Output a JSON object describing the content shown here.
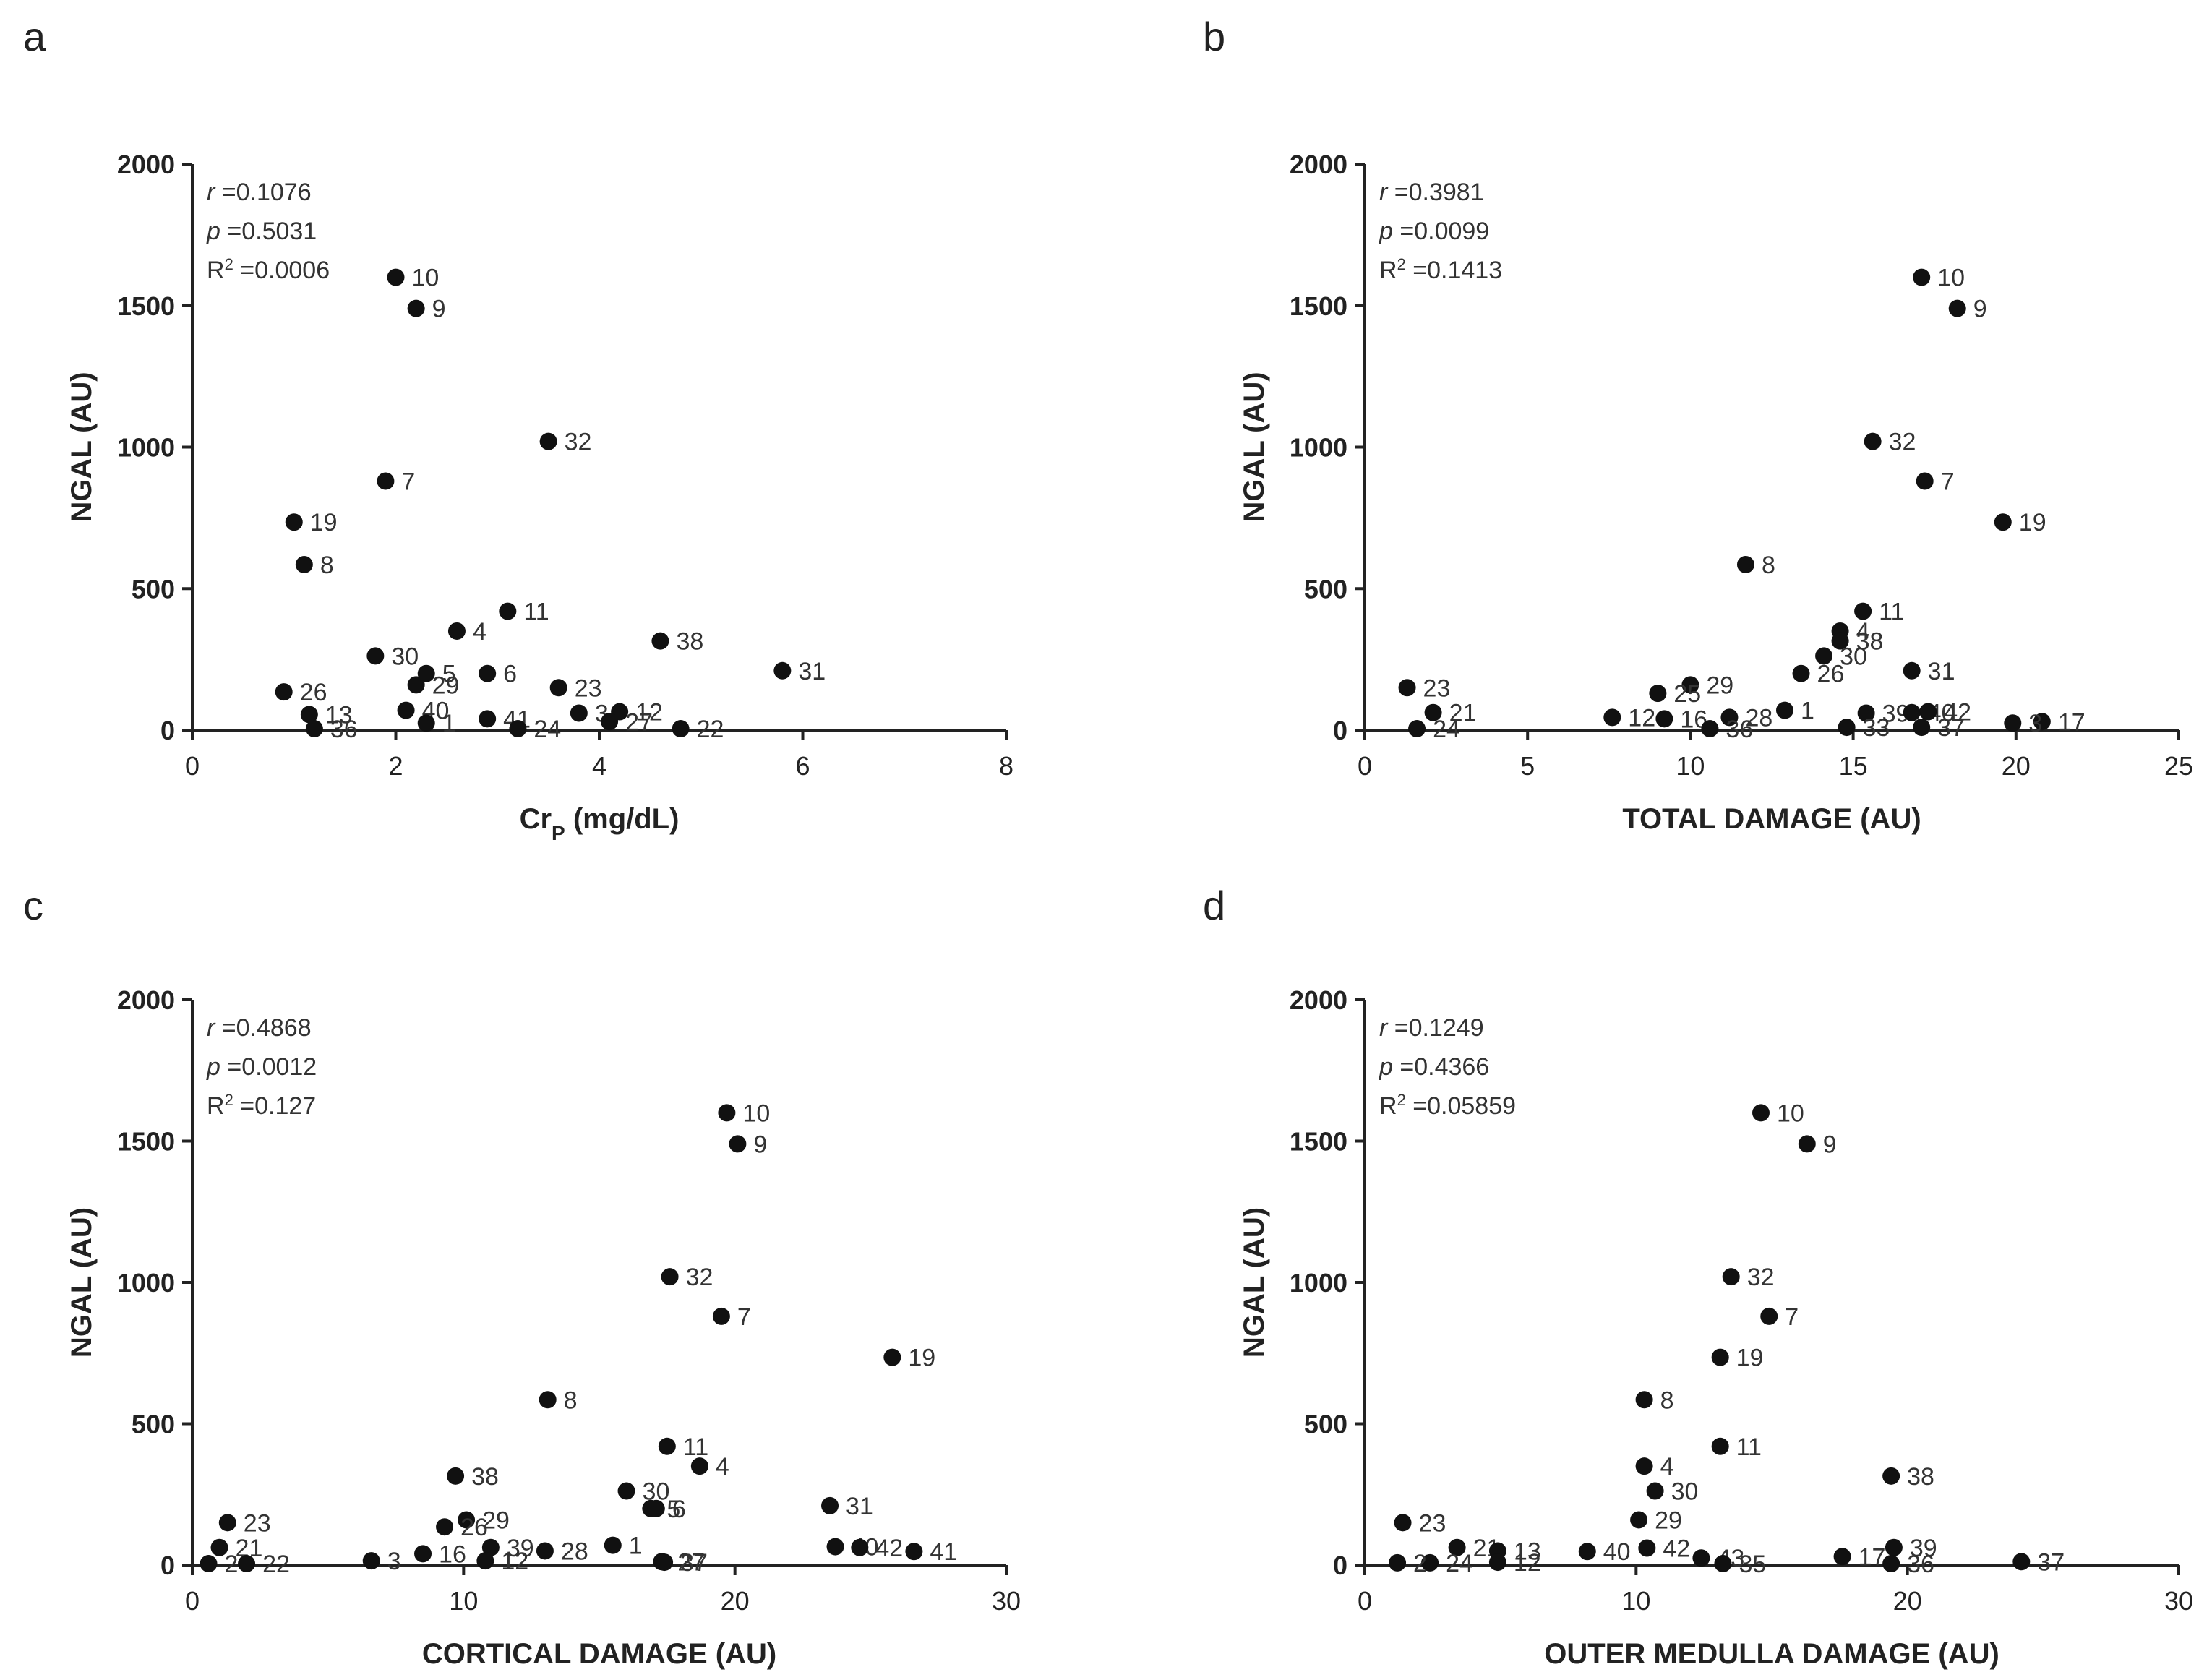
{
  "chart_data": [
    {
      "panel_letter": "a",
      "type": "scatter",
      "xlabel": "Cr",
      "xlabel_sub": "P",
      "xlabel_tail": " (mg/dL)",
      "ylabel": "NGAL (AU)",
      "xlim": [
        0,
        8
      ],
      "ylim": [
        0,
        2000
      ],
      "xticks": [
        0,
        2,
        4,
        6,
        8
      ],
      "yticks": [
        0,
        500,
        1000,
        1500,
        2000
      ],
      "stats": {
        "r": "=0.1076",
        "p": "=0.5031",
        "r2": "=0.0006"
      },
      "points": [
        {
          "label": "10",
          "x": 2.0,
          "y": 1600
        },
        {
          "label": "9",
          "x": 2.2,
          "y": 1490
        },
        {
          "label": "32",
          "x": 3.5,
          "y": 1020
        },
        {
          "label": "7",
          "x": 1.9,
          "y": 880
        },
        {
          "label": "19",
          "x": 1.0,
          "y": 735
        },
        {
          "label": "8",
          "x": 1.1,
          "y": 585
        },
        {
          "label": "11",
          "x": 3.1,
          "y": 420
        },
        {
          "label": "4",
          "x": 2.6,
          "y": 350
        },
        {
          "label": "38",
          "x": 4.6,
          "y": 315
        },
        {
          "label": "30",
          "x": 1.8,
          "y": 262
        },
        {
          "label": "31",
          "x": 5.8,
          "y": 210
        },
        {
          "label": "5",
          "x": 2.3,
          "y": 200
        },
        {
          "label": "6",
          "x": 2.9,
          "y": 200
        },
        {
          "label": "29",
          "x": 2.2,
          "y": 160
        },
        {
          "label": "23",
          "x": 3.6,
          "y": 150
        },
        {
          "label": "26",
          "x": 0.9,
          "y": 135
        },
        {
          "label": "40",
          "x": 2.1,
          "y": 70
        },
        {
          "label": "13",
          "x": 1.15,
          "y": 55
        },
        {
          "label": "3",
          "x": 3.8,
          "y": 60
        },
        {
          "label": "12",
          "x": 4.2,
          "y": 65
        },
        {
          "label": "41",
          "x": 2.9,
          "y": 40
        },
        {
          "label": "1",
          "x": 2.3,
          "y": 25
        },
        {
          "label": "24",
          "x": 3.2,
          "y": 5
        },
        {
          "label": "27",
          "x": 4.1,
          "y": 30
        },
        {
          "label": "22",
          "x": 4.8,
          "y": 5
        },
        {
          "label": "36",
          "x": 1.2,
          "y": 5
        }
      ]
    },
    {
      "panel_letter": "b",
      "type": "scatter",
      "xlabel": "TOTAL DAMAGE (AU)",
      "ylabel": "NGAL (AU)",
      "xlim": [
        0,
        25
      ],
      "ylim": [
        0,
        2000
      ],
      "xticks": [
        0,
        5,
        10,
        15,
        20,
        25
      ],
      "yticks": [
        0,
        500,
        1000,
        1500,
        2000
      ],
      "stats": {
        "r": "=0.3981",
        "p": "=0.0099",
        "r2": "=0.1413"
      },
      "points": [
        {
          "label": "10",
          "x": 17.1,
          "y": 1600
        },
        {
          "label": "9",
          "x": 18.2,
          "y": 1490
        },
        {
          "label": "32",
          "x": 15.6,
          "y": 1020
        },
        {
          "label": "7",
          "x": 17.2,
          "y": 880
        },
        {
          "label": "19",
          "x": 19.6,
          "y": 735
        },
        {
          "label": "8",
          "x": 11.7,
          "y": 585
        },
        {
          "label": "11",
          "x": 15.3,
          "y": 420
        },
        {
          "label": "4",
          "x": 14.6,
          "y": 350
        },
        {
          "label": "38",
          "x": 14.6,
          "y": 315
        },
        {
          "label": "30",
          "x": 14.1,
          "y": 262
        },
        {
          "label": "26",
          "x": 13.4,
          "y": 200
        },
        {
          "label": "31",
          "x": 16.8,
          "y": 210
        },
        {
          "label": "29",
          "x": 10.0,
          "y": 160
        },
        {
          "label": "23",
          "x": 1.3,
          "y": 150
        },
        {
          "label": "25",
          "x": 9.0,
          "y": 130
        },
        {
          "label": "21",
          "x": 2.1,
          "y": 62
        },
        {
          "label": "12",
          "x": 7.6,
          "y": 45
        },
        {
          "label": "16",
          "x": 9.2,
          "y": 40
        },
        {
          "label": "28",
          "x": 11.2,
          "y": 45
        },
        {
          "label": "1",
          "x": 12.9,
          "y": 70
        },
        {
          "label": "39",
          "x": 15.4,
          "y": 60
        },
        {
          "label": "40",
          "x": 16.8,
          "y": 62
        },
        {
          "label": "42",
          "x": 17.3,
          "y": 65
        },
        {
          "label": "17",
          "x": 20.8,
          "y": 30
        },
        {
          "label": "3",
          "x": 19.9,
          "y": 25
        },
        {
          "label": "33",
          "x": 14.8,
          "y": 10
        },
        {
          "label": "37",
          "x": 17.1,
          "y": 10
        },
        {
          "label": "36",
          "x": 10.6,
          "y": 5
        },
        {
          "label": "24",
          "x": 1.6,
          "y": 5
        }
      ]
    },
    {
      "panel_letter": "c",
      "type": "scatter",
      "xlabel": "CORTICAL DAMAGE (AU)",
      "ylabel": "NGAL (AU)",
      "xlim": [
        0,
        30
      ],
      "ylim": [
        0,
        2000
      ],
      "xticks": [
        0,
        10,
        20,
        30
      ],
      "yticks": [
        0,
        500,
        1000,
        1500,
        2000
      ],
      "stats": {
        "r": "=0.4868",
        "p": "=0.0012",
        "r2": "=0.127"
      },
      "points": [
        {
          "label": "10",
          "x": 19.7,
          "y": 1600
        },
        {
          "label": "9",
          "x": 20.1,
          "y": 1490
        },
        {
          "label": "32",
          "x": 17.6,
          "y": 1020
        },
        {
          "label": "7",
          "x": 19.5,
          "y": 880
        },
        {
          "label": "19",
          "x": 25.8,
          "y": 735
        },
        {
          "label": "8",
          "x": 13.1,
          "y": 585
        },
        {
          "label": "11",
          "x": 17.5,
          "y": 420
        },
        {
          "label": "4",
          "x": 18.7,
          "y": 350
        },
        {
          "label": "38",
          "x": 9.7,
          "y": 315
        },
        {
          "label": "30",
          "x": 16.0,
          "y": 262
        },
        {
          "label": "5",
          "x": 16.9,
          "y": 200
        },
        {
          "label": "6",
          "x": 17.1,
          "y": 200
        },
        {
          "label": "31",
          "x": 23.5,
          "y": 210
        },
        {
          "label": "29",
          "x": 10.1,
          "y": 160
        },
        {
          "label": "26",
          "x": 9.3,
          "y": 135
        },
        {
          "label": "23",
          "x": 1.3,
          "y": 150
        },
        {
          "label": "21",
          "x": 1.0,
          "y": 62
        },
        {
          "label": "39",
          "x": 11.0,
          "y": 62
        },
        {
          "label": "28",
          "x": 13.0,
          "y": 50
        },
        {
          "label": "1",
          "x": 15.5,
          "y": 70
        },
        {
          "label": "40",
          "x": 23.7,
          "y": 65
        },
        {
          "label": "42",
          "x": 24.6,
          "y": 62
        },
        {
          "label": "41",
          "x": 26.6,
          "y": 48
        },
        {
          "label": "16",
          "x": 8.5,
          "y": 40
        },
        {
          "label": "12",
          "x": 10.8,
          "y": 15
        },
        {
          "label": "3",
          "x": 6.6,
          "y": 15
        },
        {
          "label": "27",
          "x": 17.3,
          "y": 12
        },
        {
          "label": "37",
          "x": 17.4,
          "y": 10
        },
        {
          "label": "22",
          "x": 2.0,
          "y": 5
        },
        {
          "label": "2",
          "x": 0.6,
          "y": 5
        }
      ]
    },
    {
      "panel_letter": "d",
      "type": "scatter",
      "xlabel": "OUTER MEDULLA DAMAGE (AU)",
      "ylabel": "NGAL (AU)",
      "xlim": [
        0,
        30
      ],
      "ylim": [
        0,
        2000
      ],
      "xticks": [
        0,
        10,
        20,
        30
      ],
      "yticks": [
        0,
        500,
        1000,
        1500,
        2000
      ],
      "stats": {
        "r": "=0.1249",
        "p": "=0.4366",
        "r2": "=0.05859"
      },
      "points": [
        {
          "label": "10",
          "x": 14.6,
          "y": 1600
        },
        {
          "label": "9",
          "x": 16.3,
          "y": 1490
        },
        {
          "label": "32",
          "x": 13.5,
          "y": 1020
        },
        {
          "label": "7",
          "x": 14.9,
          "y": 880
        },
        {
          "label": "19",
          "x": 13.1,
          "y": 735
        },
        {
          "label": "8",
          "x": 10.3,
          "y": 585
        },
        {
          "label": "11",
          "x": 13.1,
          "y": 420
        },
        {
          "label": "4",
          "x": 10.3,
          "y": 350
        },
        {
          "label": "38",
          "x": 19.4,
          "y": 315
        },
        {
          "label": "30",
          "x": 10.7,
          "y": 262
        },
        {
          "label": "29",
          "x": 10.1,
          "y": 160
        },
        {
          "label": "23",
          "x": 1.4,
          "y": 150
        },
        {
          "label": "21",
          "x": 3.4,
          "y": 62
        },
        {
          "label": "13",
          "x": 4.9,
          "y": 50
        },
        {
          "label": "39",
          "x": 19.5,
          "y": 62
        },
        {
          "label": "40",
          "x": 8.2,
          "y": 48
        },
        {
          "label": "42",
          "x": 10.4,
          "y": 60
        },
        {
          "label": "17",
          "x": 17.6,
          "y": 30
        },
        {
          "label": "43",
          "x": 12.4,
          "y": 25
        },
        {
          "label": "12",
          "x": 4.9,
          "y": 10
        },
        {
          "label": "24",
          "x": 2.4,
          "y": 8
        },
        {
          "label": "2",
          "x": 1.2,
          "y": 8
        },
        {
          "label": "36",
          "x": 19.4,
          "y": 5
        },
        {
          "label": "35",
          "x": 13.2,
          "y": 5
        },
        {
          "label": "37",
          "x": 24.2,
          "y": 12
        }
      ]
    }
  ]
}
